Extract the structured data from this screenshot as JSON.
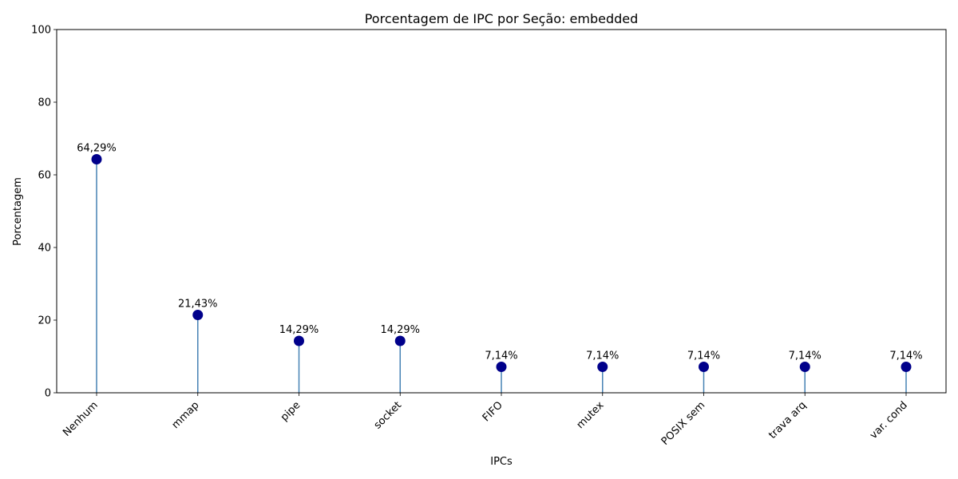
{
  "chart_data": {
    "type": "lollipop",
    "title": "Porcentagem de IPC por Seção: embedded",
    "xlabel": "IPCs",
    "ylabel": "Porcentagem",
    "ylim": [
      0,
      100
    ],
    "yticks": [
      0,
      20,
      40,
      60,
      80,
      100
    ],
    "categories": [
      "Nenhum",
      "mmap",
      "pipe",
      "socket",
      "FIFO",
      "mutex",
      "POSIX sem",
      "trava arq",
      "var. cond"
    ],
    "values": [
      64.29,
      21.43,
      14.29,
      14.29,
      7.14,
      7.14,
      7.14,
      7.14,
      7.14
    ],
    "value_labels": [
      "64,29%",
      "21,43%",
      "14,29%",
      "14,29%",
      "7,14%",
      "7,14%",
      "7,14%",
      "7,14%",
      "7,14%"
    ],
    "grid": false,
    "colors": {
      "marker": "#00008b",
      "stem": "#4682b4"
    }
  }
}
